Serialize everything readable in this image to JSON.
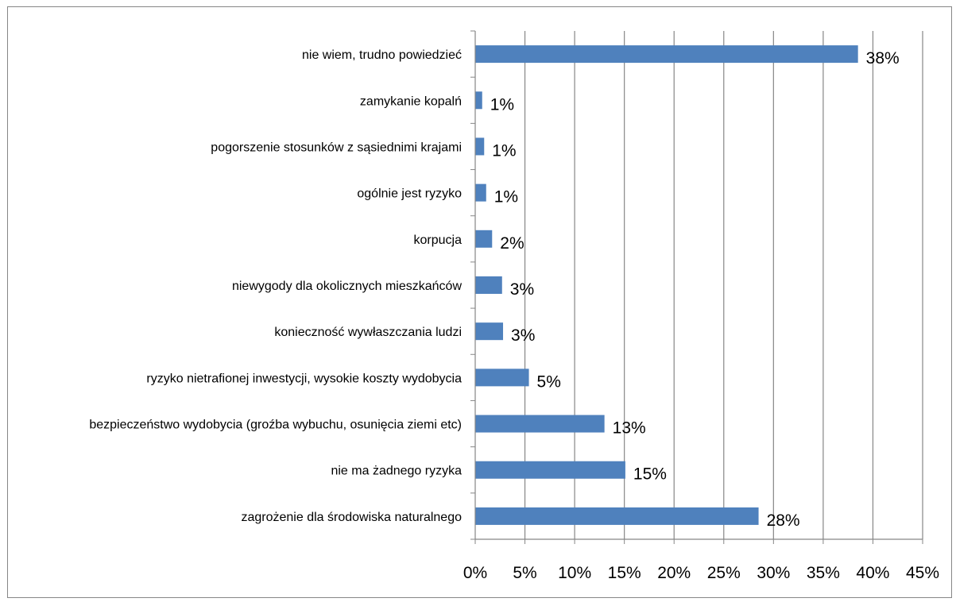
{
  "chart_data": {
    "type": "bar",
    "orientation": "horizontal",
    "categories": [
      "nie wiem, trudno powiedzieć",
      "zamykanie kopalń",
      "pogorszenie stosunków z sąsiednimi krajami",
      "ogólnie jest ryzyko",
      "korpucja",
      "niewygody dla okolicznych mieszkańców",
      "konieczność wywłaszczania ludzi",
      "ryzyko nietrafionej inwestycji, wysokie koszty wydobycia",
      "bezpieczeństwo wydobycia (groźba wybuchu, osunięcia ziemi etc)",
      "nie ma żadnego ryzyka",
      "zagrożenie dla środowiska naturalnego"
    ],
    "values": [
      38.5,
      0.7,
      0.9,
      1.1,
      1.7,
      2.7,
      2.8,
      5.4,
      13.0,
      15.1,
      28.5
    ],
    "data_labels": [
      "38%",
      "1%",
      "1%",
      "1%",
      "2%",
      "3%",
      "3%",
      "5%",
      "13%",
      "15%",
      "28%"
    ],
    "xlim": [
      0,
      45
    ],
    "x_ticks": [
      {
        "value": 0,
        "label": "0%"
      },
      {
        "value": 5,
        "label": "5%"
      },
      {
        "value": 10,
        "label": "10%"
      },
      {
        "value": 15,
        "label": "15%"
      },
      {
        "value": 20,
        "label": "20%"
      },
      {
        "value": 25,
        "label": "25%"
      },
      {
        "value": 30,
        "label": "30%"
      },
      {
        "value": 35,
        "label": "35%"
      },
      {
        "value": 40,
        "label": "40%"
      },
      {
        "value": 45,
        "label": "45%"
      }
    ],
    "title": "",
    "xlabel": "",
    "ylabel": "",
    "grid": "vertical",
    "legend": "none",
    "bar_color": "#4F81BD",
    "grid_color": "#868686",
    "text_color": "#000000"
  }
}
